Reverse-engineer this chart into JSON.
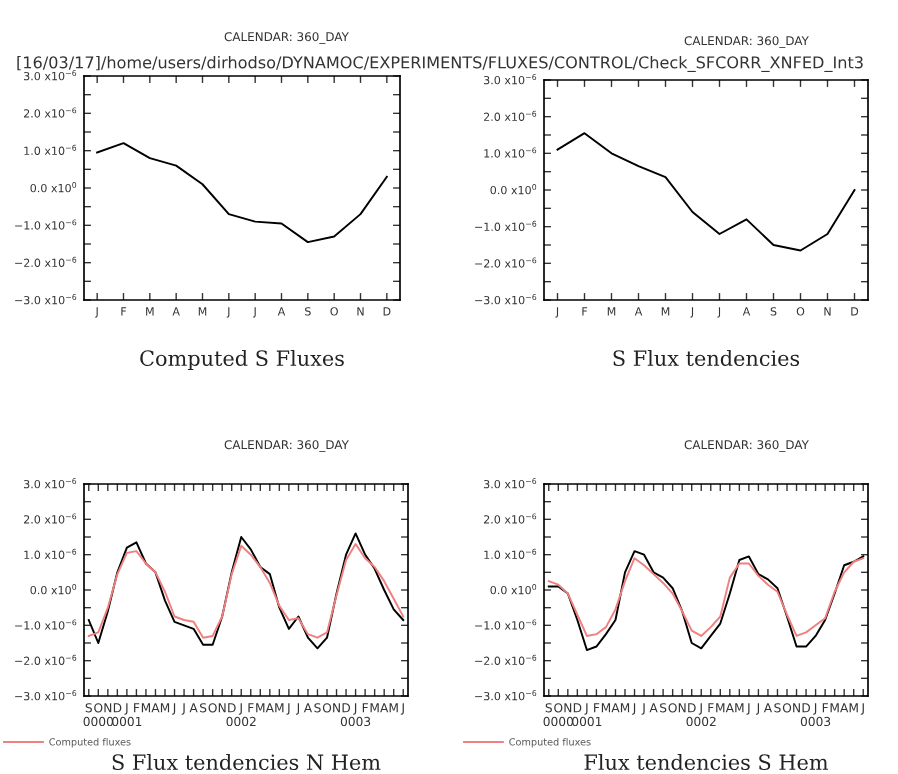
{
  "chart_data": [
    {
      "type": "line",
      "title": "Computed S Fluxes",
      "subtitle": "[16/03/17]/home/users/dirhodso/DYNAMOC/EXPERIMENTS/FLUXES/CONTROL/Check_SFCORR_XNFED_Int3",
      "annotations": [
        "CALENDAR: 360_DAY"
      ],
      "ylim": [
        -3e-06,
        3e-06
      ],
      "categories": [
        "J",
        "F",
        "M",
        "A",
        "M",
        "J",
        "J",
        "A",
        "S",
        "O",
        "N",
        "D"
      ],
      "yticks": [
        {
          "value": -3e-06,
          "label": "−3.0 x10$^{−6}$"
        },
        {
          "value": -2.5e-06,
          "label": null
        },
        {
          "value": -2e-06,
          "label": "−2.0 x10$^{−6}$"
        },
        {
          "value": -1.5e-06,
          "label": null
        },
        {
          "value": -1e-06,
          "label": "−1.0 x10$^{−6}$"
        },
        {
          "value": -5e-07,
          "label": null
        },
        {
          "value": 0,
          "label": "0.0 x10$^{0}$"
        },
        {
          "value": 5e-07,
          "label": null
        },
        {
          "value": 1e-06,
          "label": "1.0 x10$^{−6}$"
        },
        {
          "value": 1.5e-06,
          "label": null
        },
        {
          "value": 2e-06,
          "label": "2.0 x10$^{−6}$"
        },
        {
          "value": 2.5e-06,
          "label": null
        },
        {
          "value": 3e-06,
          "label": "3.0 x10$^{−6}$"
        }
      ],
      "legend": false,
      "series": [
        {
          "color": "#000000",
          "values": [
            9.5e-07,
            1.2e-06,
            8e-07,
            6e-07,
            1e-07,
            -7e-07,
            -9e-07,
            -9.5e-07,
            -1.45e-06,
            -1.3e-06,
            -7e-07,
            3e-07
          ]
        }
      ]
    },
    {
      "type": "line",
      "title": "S Flux tendencies",
      "annotations": [
        "CALENDAR: 360_DAY"
      ],
      "ylim": [
        -3e-06,
        3e-06
      ],
      "categories": [
        "J",
        "F",
        "M",
        "A",
        "M",
        "J",
        "J",
        "A",
        "S",
        "O",
        "N",
        "D"
      ],
      "yticks": [
        {
          "value": -3e-06,
          "label": "−3.0 x10$^{−6}$"
        },
        {
          "value": -2.5e-06,
          "label": null
        },
        {
          "value": -2e-06,
          "label": "−2.0 x10$^{−6}$"
        },
        {
          "value": -1.5e-06,
          "label": null
        },
        {
          "value": -1e-06,
          "label": "−1.0 x10$^{−6}$"
        },
        {
          "value": -5e-07,
          "label": null
        },
        {
          "value": 0,
          "label": "0.0 x10$^{0}$"
        },
        {
          "value": 5e-07,
          "label": null
        },
        {
          "value": 1e-06,
          "label": "1.0 x10$^{−6}$"
        },
        {
          "value": 1.5e-06,
          "label": null
        },
        {
          "value": 2e-06,
          "label": "2.0 x10$^{−6}$"
        },
        {
          "value": 2.5e-06,
          "label": null
        },
        {
          "value": 3e-06,
          "label": "3.0 x10$^{−6}$"
        }
      ],
      "legend": false,
      "series": [
        {
          "color": "#000000",
          "values": [
            1.1e-06,
            1.55e-06,
            1e-06,
            6.5e-07,
            3.5e-07,
            -6e-07,
            -1.2e-06,
            -8e-07,
            -1.5e-06,
            -1.65e-06,
            -1.2e-06,
            0
          ]
        }
      ]
    },
    {
      "type": "line",
      "title": "S Flux tendencies N Hem",
      "annotations": [
        "CALENDAR: 360_DAY"
      ],
      "ylim": [
        -3e-06,
        3e-06
      ],
      "categories": [
        "S",
        "O\n0000",
        "N",
        "D",
        "J\n0001",
        "F",
        "M",
        "A",
        "M",
        "J",
        "J",
        "A",
        "S",
        "O",
        "N",
        "D",
        "J\n0002",
        "F",
        "M",
        "A",
        "M",
        "J",
        "J",
        "A",
        "S",
        "O",
        "N",
        "D",
        "J\n0003",
        "F",
        "M",
        "A",
        "M",
        "J"
      ],
      "yticks": [
        {
          "value": -3e-06,
          "label": "−3.0 x10$^{−6}$"
        },
        {
          "value": -2.5e-06,
          "label": null
        },
        {
          "value": -2e-06,
          "label": "−2.0 x10$^{−6}$"
        },
        {
          "value": -1.5e-06,
          "label": null
        },
        {
          "value": -1e-06,
          "label": "−1.0 x10$^{−6}$"
        },
        {
          "value": -5e-07,
          "label": null
        },
        {
          "value": 0,
          "label": "0.0 x10$^{0}$"
        },
        {
          "value": 5e-07,
          "label": null
        },
        {
          "value": 1e-06,
          "label": "1.0 x10$^{−6}$"
        },
        {
          "value": 1.5e-06,
          "label": null
        },
        {
          "value": 2e-06,
          "label": "2.0 x10$^{−6}$"
        },
        {
          "value": 2.5e-06,
          "label": null
        },
        {
          "value": 3e-06,
          "label": "3.0 x10$^{−6}$"
        }
      ],
      "legend": "bottom left",
      "series": [
        {
          "color": "#000000",
          "values": [
            -8.5e-07,
            -1.5e-06,
            -6e-07,
            5e-07,
            1.2e-06,
            1.35e-06,
            7.5e-07,
            5e-07,
            -3e-07,
            -9e-07,
            -1e-06,
            -1.1e-06,
            -1.55e-06,
            -1.55e-06,
            -7.5e-07,
            5e-07,
            1.5e-06,
            1.15e-06,
            6.5e-07,
            4.5e-07,
            -5e-07,
            -1.1e-06,
            -7.5e-07,
            -1.35e-06,
            -1.65e-06,
            -1.35e-06,
            -1e-07,
            1e-06,
            1.6e-06,
            1e-06,
            6e-07,
            0,
            -5.5e-07,
            -8.5e-07
          ]
        },
        {
          "name": "Computed fluxes",
          "color": "#f08080",
          "values": [
            -1.3e-06,
            -1.2e-06,
            -5e-07,
            4.5e-07,
            1.05e-06,
            1.1e-06,
            7.5e-07,
            5e-07,
            -5e-08,
            -7.5e-07,
            -8.5e-07,
            -9e-07,
            -1.35e-06,
            -1.3e-06,
            -7.5e-07,
            4.5e-07,
            1.25e-06,
            1e-06,
            6.5e-07,
            2e-07,
            -4.5e-07,
            -8.5e-07,
            -8e-07,
            -1.25e-06,
            -1.35e-06,
            -1.2e-06,
            -1.5e-07,
            8.5e-07,
            1.3e-06,
            9e-07,
            6.5e-07,
            2.5e-07,
            -2.5e-07,
            -7.5e-07
          ]
        }
      ]
    },
    {
      "type": "line",
      "title": "Flux tendencies S Hem",
      "annotations": [
        "CALENDAR: 360_DAY"
      ],
      "ylim": [
        -3e-06,
        3e-06
      ],
      "categories": [
        "S",
        "O\n0000",
        "N",
        "D",
        "J\n0001",
        "F",
        "M",
        "A",
        "M",
        "J",
        "J",
        "A",
        "S",
        "O",
        "N",
        "D",
        "J\n0002",
        "F",
        "M",
        "A",
        "M",
        "J",
        "J",
        "A",
        "S",
        "O",
        "N",
        "D",
        "J\n0003",
        "F",
        "M",
        "A",
        "M",
        "J"
      ],
      "yticks": [
        {
          "value": -3e-06,
          "label": "−3.0 x10$^{−6}$"
        },
        {
          "value": -2.5e-06,
          "label": null
        },
        {
          "value": -2e-06,
          "label": "−2.0 x10$^{−6}$"
        },
        {
          "value": -1.5e-06,
          "label": null
        },
        {
          "value": -1e-06,
          "label": "−1.0 x10$^{−6}$"
        },
        {
          "value": -5e-07,
          "label": null
        },
        {
          "value": 0,
          "label": "0.0 x10$^{0}$"
        },
        {
          "value": 5e-07,
          "label": null
        },
        {
          "value": 1e-06,
          "label": "1.0 x10$^{−6}$"
        },
        {
          "value": 1.5e-06,
          "label": null
        },
        {
          "value": 2e-06,
          "label": "2.0 x10$^{−6}$"
        },
        {
          "value": 2.5e-06,
          "label": null
        },
        {
          "value": 3e-06,
          "label": "3.0 x10$^{−6}$"
        }
      ],
      "legend": "bottom left",
      "series": [
        {
          "color": "#000000",
          "values": [
            1e-07,
            1e-07,
            -1e-07,
            -8.5e-07,
            -1.7e-06,
            -1.6e-06,
            -1.25e-06,
            -8.5e-07,
            5e-07,
            1.1e-06,
            1e-06,
            5e-07,
            3.5e-07,
            5e-08,
            -6e-07,
            -1.5e-06,
            -1.65e-06,
            -1.3e-06,
            -9.5e-07,
            -1e-07,
            8.5e-07,
            9.5e-07,
            4.5e-07,
            3e-07,
            5e-08,
            -7.5e-07,
            -1.6e-06,
            -1.6e-06,
            -1.3e-06,
            -8.5e-07,
            -1e-07,
            7e-07,
            8e-07,
            9.5e-07
          ]
        },
        {
          "name": "Computed fluxes",
          "color": "#f08080",
          "values": [
            2.5e-07,
            1.5e-07,
            -1e-07,
            -7e-07,
            -1.3e-06,
            -1.25e-06,
            -1.05e-06,
            -5.5e-07,
            2.5e-07,
            9e-07,
            7e-07,
            4.5e-07,
            2e-07,
            -1e-07,
            -6e-07,
            -1.15e-06,
            -1.3e-06,
            -1.05e-06,
            -7.5e-07,
            3.5e-07,
            7.5e-07,
            7.5e-07,
            4e-07,
            1.5e-07,
            -5e-08,
            -7e-07,
            -1.3e-06,
            -1.2e-06,
            -1e-06,
            -8e-07,
            -5e-08,
            5e-07,
            8e-07,
            9e-07
          ]
        }
      ]
    }
  ]
}
